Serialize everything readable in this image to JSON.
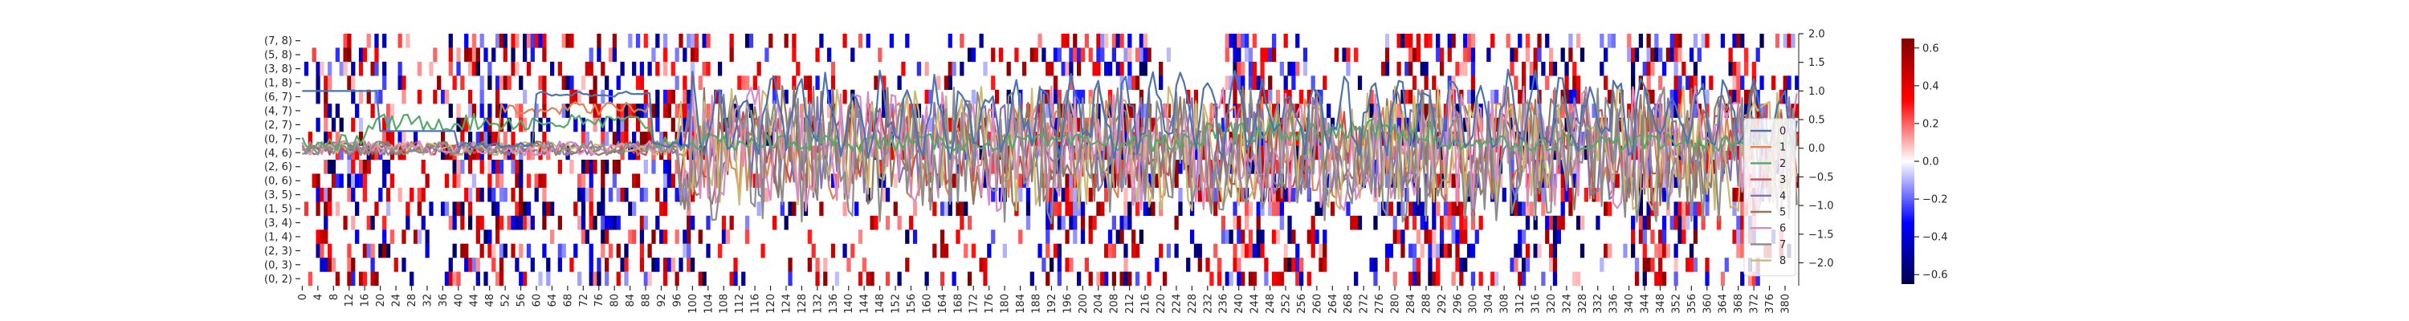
{
  "chart_data": {
    "type": "heatmap",
    "y_categories": [
      "(7, 8)",
      "(5, 8)",
      "(3, 8)",
      "(1, 8)",
      "(6, 7)",
      "(4, 7)",
      "(2, 7)",
      "(0, 7)",
      "(4, 6)",
      "(2, 6)",
      "(0, 6)",
      "(3, 5)",
      "(1, 5)",
      "(3, 4)",
      "(1, 4)",
      "(2, 3)",
      "(0, 3)",
      "(0, 2)"
    ],
    "x_tick_labels": [
      "0",
      "4",
      "8",
      "12",
      "16",
      "20",
      "24",
      "28",
      "32",
      "36",
      "40",
      "44",
      "48",
      "52",
      "56",
      "60",
      "64",
      "68",
      "72",
      "76",
      "80",
      "84",
      "88",
      "92",
      "96",
      "100",
      "104",
      "108",
      "112",
      "116",
      "120",
      "124",
      "128",
      "132",
      "136",
      "140",
      "144",
      "148",
      "152",
      "156",
      "160",
      "164",
      "168",
      "172",
      "176",
      "180",
      "184",
      "188",
      "192",
      "196",
      "200",
      "204",
      "208",
      "212",
      "216",
      "220",
      "224",
      "228",
      "232",
      "236",
      "240",
      "244",
      "248",
      "252",
      "256",
      "260",
      "264",
      "268",
      "272",
      "276",
      "280",
      "284",
      "288",
      "292",
      "296",
      "300",
      "304",
      "308",
      "312",
      "316",
      "320",
      "324",
      "328",
      "332",
      "336",
      "340",
      "344",
      "348",
      "352",
      "356",
      "360",
      "364",
      "368",
      "372",
      "376",
      "380"
    ],
    "x_min": 0,
    "x_max": 383,
    "colorbar": {
      "min": -0.65,
      "max": 0.65,
      "ticks": [
        "0.6",
        "0.4",
        "0.2",
        "0.0",
        "−0.2",
        "−0.4",
        "−0.6"
      ]
    },
    "right_axis": {
      "min": -2.4,
      "max": 2.0,
      "ticks": [
        "2.0",
        "1.5",
        "1.0",
        "0.5",
        "0.0",
        "−0.5",
        "−1.0",
        "−1.5",
        "−2.0"
      ]
    },
    "legend_entries": [
      "0",
      "1",
      "2",
      "3",
      "4",
      "5",
      "6",
      "7",
      "8"
    ],
    "legend_placement": "right",
    "series_colors": [
      "#4c72b0",
      "#dd8452",
      "#55a868",
      "#c44e52",
      "#8172b3",
      "#937860",
      "#da8bc3",
      "#8c8c8c",
      "#ccb974"
    ]
  }
}
